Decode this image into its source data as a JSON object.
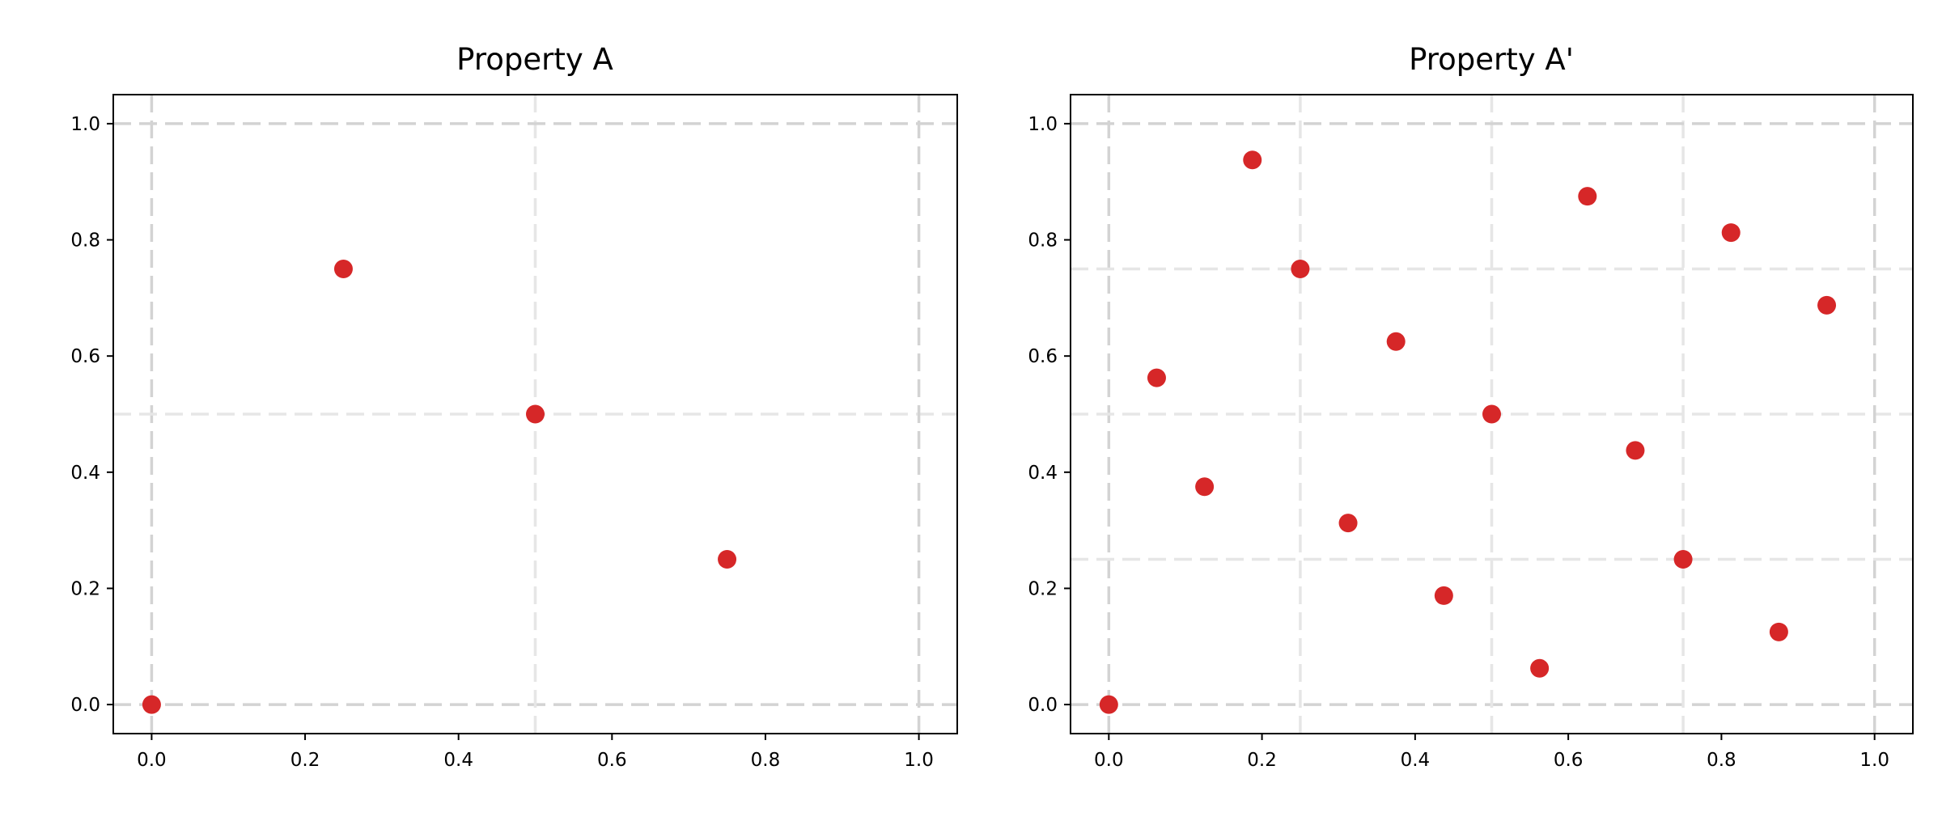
{
  "chart_data": [
    {
      "type": "scatter",
      "title": "Property A",
      "xlim": [
        -0.05,
        1.05
      ],
      "ylim": [
        -0.05,
        1.05
      ],
      "xticks": [
        "0.0",
        "0.2",
        "0.4",
        "0.6",
        "0.8",
        "1.0"
      ],
      "yticks": [
        "0.0",
        "0.2",
        "0.4",
        "0.6",
        "0.8",
        "1.0"
      ],
      "grid_lines": [
        0,
        0.5,
        1
      ],
      "grid": true,
      "marker_color": "#d62728",
      "points": [
        [
          0,
          0
        ],
        [
          0.5,
          0.5
        ],
        [
          0.75,
          0.25
        ],
        [
          0.25,
          0.75
        ]
      ]
    },
    {
      "type": "scatter",
      "title": "Property A'",
      "xlim": [
        -0.05,
        1.05
      ],
      "ylim": [
        -0.05,
        1.05
      ],
      "xticks": [
        "0.0",
        "0.2",
        "0.4",
        "0.6",
        "0.8",
        "1.0"
      ],
      "yticks": [
        "0.0",
        "0.2",
        "0.4",
        "0.6",
        "0.8",
        "1.0"
      ],
      "grid_lines": [
        0,
        0.25,
        0.5,
        0.75,
        1
      ],
      "grid": true,
      "marker_color": "#d62728",
      "points": [
        [
          0,
          0
        ],
        [
          0.5,
          0.5
        ],
        [
          0.75,
          0.25
        ],
        [
          0.25,
          0.75
        ],
        [
          0.375,
          0.625
        ],
        [
          0.875,
          0.125
        ],
        [
          0.625,
          0.875
        ],
        [
          0.125,
          0.375
        ],
        [
          0.1875,
          0.9375
        ],
        [
          0.6875,
          0.4375
        ],
        [
          0.9375,
          0.6875
        ],
        [
          0.4375,
          0.1875
        ],
        [
          0.3125,
          0.3125
        ],
        [
          0.8125,
          0.8125
        ],
        [
          0.5625,
          0.0625
        ],
        [
          0.0625,
          0.5625
        ]
      ]
    }
  ]
}
